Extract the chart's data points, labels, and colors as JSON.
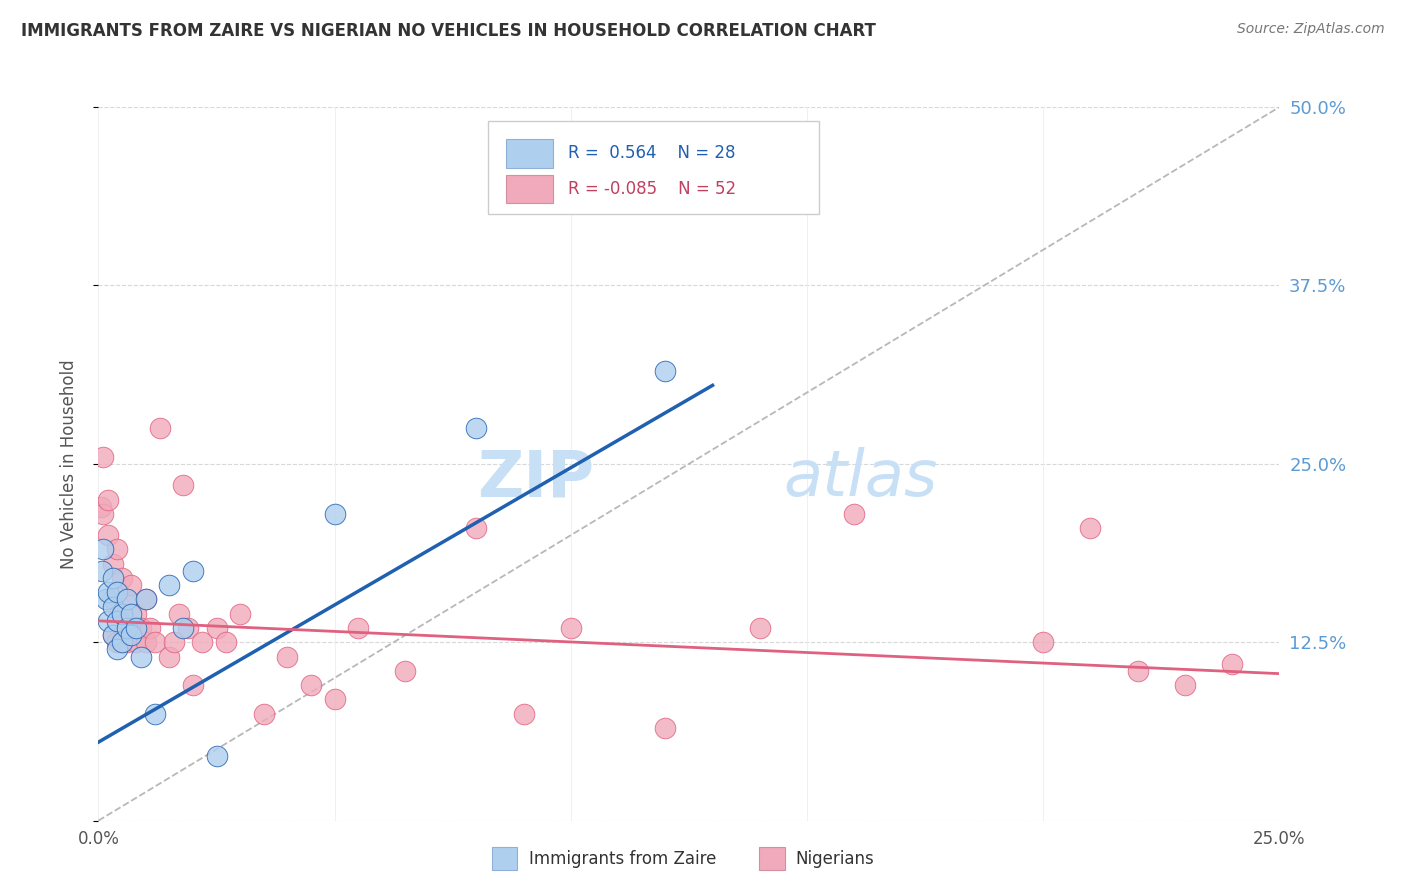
{
  "title": "IMMIGRANTS FROM ZAIRE VS NIGERIAN NO VEHICLES IN HOUSEHOLD CORRELATION CHART",
  "source": "Source: ZipAtlas.com",
  "xlabel_blue": "Immigrants from Zaire",
  "xlabel_pink": "Nigerians",
  "ylabel": "No Vehicles in Household",
  "xlim": [
    0.0,
    0.25
  ],
  "ylim": [
    0.0,
    0.5
  ],
  "xticks": [
    0.0,
    0.05,
    0.1,
    0.15,
    0.2,
    0.25
  ],
  "xtick_labels": [
    "0.0%",
    "",
    "",
    "",
    "",
    "25.0%"
  ],
  "yticks": [
    0.0,
    0.125,
    0.25,
    0.375,
    0.5
  ],
  "ytick_labels_right": [
    "",
    "12.5%",
    "25.0%",
    "37.5%",
    "50.0%"
  ],
  "r_blue": 0.564,
  "n_blue": 28,
  "r_pink": -0.085,
  "n_pink": 52,
  "color_blue": "#aecfee",
  "color_blue_line": "#2060b0",
  "color_blue_legend": "#aecfee",
  "color_pink": "#f0aabb",
  "color_pink_line": "#e06080",
  "color_pink_legend": "#f0aabb",
  "color_diagonal": "#c0c0c0",
  "watermark_zip": "ZIP",
  "watermark_atlas": "atlas",
  "watermark_color": "#c8e0f5",
  "blue_x": [
    0.0008,
    0.001,
    0.0015,
    0.002,
    0.002,
    0.003,
    0.003,
    0.003,
    0.004,
    0.004,
    0.004,
    0.005,
    0.005,
    0.006,
    0.006,
    0.007,
    0.007,
    0.008,
    0.009,
    0.01,
    0.012,
    0.015,
    0.018,
    0.02,
    0.025,
    0.05,
    0.08,
    0.12
  ],
  "blue_y": [
    0.175,
    0.19,
    0.155,
    0.14,
    0.16,
    0.13,
    0.15,
    0.17,
    0.12,
    0.14,
    0.16,
    0.125,
    0.145,
    0.135,
    0.155,
    0.13,
    0.145,
    0.135,
    0.115,
    0.155,
    0.075,
    0.165,
    0.135,
    0.175,
    0.045,
    0.215,
    0.275,
    0.315
  ],
  "pink_x": [
    0.0005,
    0.001,
    0.001,
    0.002,
    0.002,
    0.003,
    0.003,
    0.003,
    0.004,
    0.004,
    0.005,
    0.005,
    0.005,
    0.006,
    0.006,
    0.007,
    0.007,
    0.008,
    0.008,
    0.009,
    0.01,
    0.01,
    0.011,
    0.012,
    0.013,
    0.015,
    0.016,
    0.017,
    0.018,
    0.019,
    0.02,
    0.022,
    0.025,
    0.027,
    0.03,
    0.035,
    0.04,
    0.045,
    0.05,
    0.055,
    0.065,
    0.08,
    0.09,
    0.1,
    0.12,
    0.14,
    0.16,
    0.2,
    0.21,
    0.22,
    0.23,
    0.24
  ],
  "pink_y": [
    0.22,
    0.215,
    0.255,
    0.2,
    0.225,
    0.13,
    0.155,
    0.18,
    0.125,
    0.19,
    0.125,
    0.145,
    0.17,
    0.125,
    0.155,
    0.135,
    0.165,
    0.125,
    0.145,
    0.135,
    0.125,
    0.155,
    0.135,
    0.125,
    0.275,
    0.115,
    0.125,
    0.145,
    0.235,
    0.135,
    0.095,
    0.125,
    0.135,
    0.125,
    0.145,
    0.075,
    0.115,
    0.095,
    0.085,
    0.135,
    0.105,
    0.205,
    0.075,
    0.135,
    0.065,
    0.135,
    0.215,
    0.125,
    0.205,
    0.105,
    0.095,
    0.11
  ]
}
